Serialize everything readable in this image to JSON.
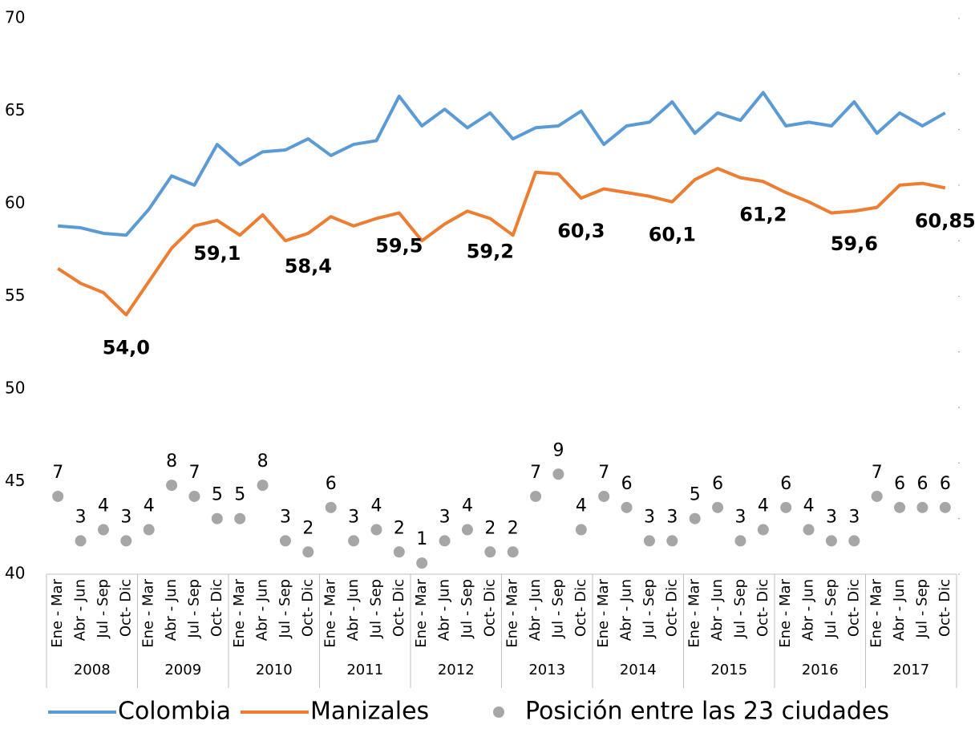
{
  "chart_data": {
    "type": "line",
    "categories": [
      "Ene - Mar",
      "Abr - Jun",
      "Jul - Sep",
      "Oct- Dic",
      "Ene - Mar",
      "Abr - Jun",
      "Jul - Sep",
      "Oct- Dic",
      "Ene - Mar",
      "Abr - Jun",
      "Jul - Sep",
      "Oct- Dic",
      "Ene - Mar",
      "Abr - Jun",
      "Jul - Sep",
      "Oct- Dic",
      "Ene - Mar",
      "Abr - Jun",
      "Jul - Sep",
      "Oct- Dic",
      "Ene - Mar",
      "Abr - Jun",
      "Jul - Sep",
      "Oct- Dic",
      "Ene - Mar",
      "Abr - Jun",
      "Jul - Sep",
      "Oct- Dic",
      "Ene - Mar",
      "Abr - Jun",
      "Jul - Sep",
      "Oct- Dic",
      "Ene - Mar",
      "Abr - Jun",
      "Jul - Sep",
      "Oct- Dic",
      "Ene - Mar",
      "Abr - Jun",
      "Jul - Sep",
      "Oct- Dic"
    ],
    "groups": [
      "2008",
      "2009",
      "2010",
      "2011",
      "2012",
      "2013",
      "2014",
      "2015",
      "2016",
      "2017"
    ],
    "series": [
      {
        "name": "Colombia",
        "color": "#5b9bd5",
        "values": [
          58.8,
          58.7,
          58.4,
          58.3,
          59.7,
          61.5,
          61.0,
          63.2,
          62.1,
          62.8,
          62.9,
          63.5,
          62.6,
          63.2,
          63.4,
          65.8,
          64.2,
          65.1,
          64.1,
          64.9,
          63.5,
          64.1,
          64.2,
          65.0,
          63.2,
          64.2,
          64.4,
          65.5,
          63.8,
          64.9,
          64.5,
          66.0,
          64.2,
          64.4,
          64.2,
          65.5,
          63.8,
          64.9,
          64.2,
          64.9
        ]
      },
      {
        "name": "Manizales",
        "color": "#ed7d31",
        "values": [
          56.5,
          55.7,
          55.2,
          54.0,
          55.8,
          57.6,
          58.8,
          59.1,
          58.3,
          59.4,
          58.0,
          58.4,
          59.3,
          58.8,
          59.2,
          59.5,
          58.0,
          58.9,
          59.6,
          59.2,
          58.3,
          61.7,
          61.6,
          60.3,
          60.8,
          60.6,
          60.4,
          60.1,
          61.3,
          61.9,
          61.4,
          61.2,
          60.6,
          60.1,
          59.5,
          59.6,
          59.8,
          61.0,
          61.1,
          60.85
        ],
        "value_labels": [
          null,
          null,
          null,
          "54,0",
          null,
          null,
          null,
          "59,1",
          null,
          null,
          null,
          "58,4",
          null,
          null,
          null,
          "59,5",
          null,
          null,
          null,
          "59,2",
          null,
          null,
          null,
          "60,3",
          null,
          null,
          null,
          "60,1",
          null,
          null,
          null,
          "61,2",
          null,
          null,
          null,
          "59,6",
          null,
          null,
          null,
          "60,85"
        ]
      },
      {
        "name": "Posición entre las 23 ciudades",
        "type": "scatter",
        "axis": "y2",
        "color": "#a6a6a6",
        "values": [
          7,
          3,
          4,
          3,
          4,
          8,
          7,
          5,
          5,
          8,
          3,
          2,
          6,
          3,
          4,
          2,
          1,
          3,
          4,
          2,
          2,
          7,
          9,
          4,
          7,
          6,
          3,
          3,
          5,
          6,
          3,
          4,
          6,
          4,
          3,
          3,
          7,
          6,
          6,
          6
        ]
      }
    ],
    "ylim": [
      40,
      70
    ],
    "yticks": [
      40,
      45,
      50,
      55,
      60,
      65,
      70
    ],
    "y2lim": [
      0,
      50
    ],
    "y2ticks": [
      0,
      5,
      10,
      15,
      20,
      25,
      30,
      35,
      40,
      45,
      50
    ],
    "legend": "bottom"
  }
}
